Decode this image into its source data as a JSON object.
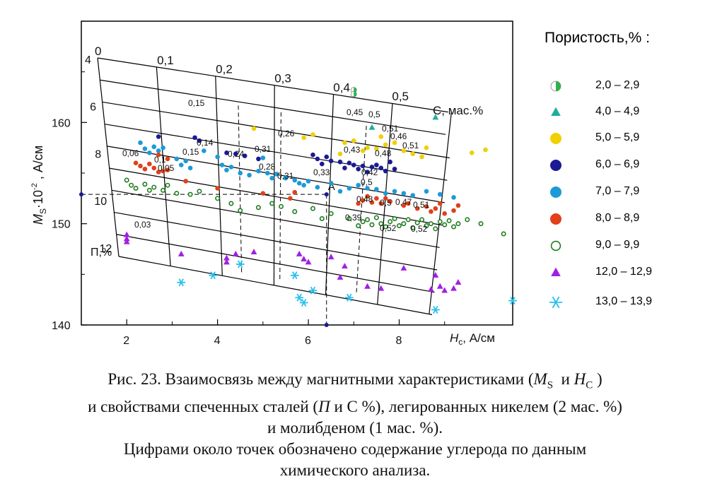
{
  "chart_data": {
    "type": "scatter",
    "title": "",
    "xlabel_main": "H",
    "xlabel_sub": "c",
    "xlabel_unit": ", А/см",
    "ylabel_main": "M",
    "ylabel_sub": "S",
    "ylabel_exp": "·10",
    "ylabel_pow": "-2",
    "ylabel_unit": " , А/см",
    "x_ticks": [
      "2",
      "4",
      "6",
      "8"
    ],
    "y_ticks": [
      "140",
      "150",
      "160"
    ],
    "xlim": [
      1,
      10.5
    ],
    "ylim": [
      140,
      170
    ],
    "nomogram": {
      "carbon_label": "С, мас.%",
      "porosity_label": "П,%",
      "carbon_values": [
        "0",
        "0,1",
        "0,2",
        "0,3",
        "0,4",
        "0,5"
      ],
      "porosity_values": [
        "4",
        "6",
        "8",
        "10",
        "12"
      ],
      "point_A_label": "A",
      "point_A": {
        "x": 6.4,
        "y": 152.9
      }
    },
    "carbon_annotations": [
      "0,15",
      "0,14",
      "0,15",
      "0,24",
      "0,26",
      "0,31",
      "0,28",
      "0,31",
      "0,33",
      "0,06",
      "0,1",
      "0,05",
      "0,45",
      "0,5",
      "0,51",
      "0,46",
      "0,51",
      "0,43",
      "0,48",
      "0,42",
      "0,5",
      "0,48",
      "0,5",
      "0,47",
      "0,51",
      "0,39",
      "0,52",
      "0,52",
      "0,03"
    ],
    "legend": {
      "title": "Пористость,%",
      "title_suffix": " :",
      "placement": "right"
    },
    "series": [
      {
        "name": "2,0 – 2,9",
        "marker": "half-circle",
        "color": "#2db34a",
        "points": [
          [
            7.0,
            163.2
          ],
          [
            7.0,
            162.8
          ]
        ]
      },
      {
        "name": "4,0 – 4,9",
        "marker": "triangle",
        "color": "#1fae9c",
        "points": [
          [
            8.8,
            160.5
          ],
          [
            7.4,
            159.5
          ]
        ]
      },
      {
        "name": "5,0 – 5,9",
        "marker": "circle",
        "color": "#f0d000",
        "points": [
          [
            4.8,
            159.4
          ],
          [
            5.9,
            158.5
          ],
          [
            6.1,
            158.8
          ],
          [
            6.8,
            158.0
          ],
          [
            7.0,
            158.2
          ],
          [
            7.2,
            157.2
          ],
          [
            7.3,
            157.5
          ],
          [
            7.5,
            157.4
          ],
          [
            7.7,
            157.8
          ],
          [
            7.9,
            158.0
          ],
          [
            8.1,
            157.2
          ],
          [
            8.3,
            156.9
          ],
          [
            8.5,
            156.6
          ],
          [
            9.6,
            157.0
          ],
          [
            9.9,
            157.3
          ],
          [
            8.6,
            157.5
          ],
          [
            7.6,
            158.6
          ],
          [
            6.7,
            156.9
          ]
        ]
      },
      {
        "name": "6,0 – 6,9",
        "marker": "circle",
        "color": "#1a1a96",
        "points": [
          [
            2.7,
            158.6
          ],
          [
            3.5,
            158.5
          ],
          [
            3.6,
            158.2
          ],
          [
            4.2,
            157.0
          ],
          [
            4.4,
            156.9
          ],
          [
            4.6,
            156.7
          ],
          [
            4.9,
            156.4
          ],
          [
            6.2,
            156.4
          ],
          [
            6.4,
            156.6
          ],
          [
            6.5,
            156.2
          ],
          [
            6.7,
            156.1
          ],
          [
            6.9,
            156.0
          ],
          [
            7.0,
            155.8
          ],
          [
            7.2,
            155.7
          ],
          [
            7.4,
            155.6
          ],
          [
            7.5,
            155.8
          ],
          [
            7.6,
            155.5
          ],
          [
            7.7,
            155.2
          ],
          [
            7.9,
            155.4
          ],
          [
            6.3,
            155.9
          ],
          [
            6.8,
            155.5
          ],
          [
            7.1,
            155.4
          ],
          [
            7.3,
            155.1
          ],
          [
            6.1,
            156.8
          ],
          [
            7.8,
            156.1
          ]
        ]
      },
      {
        "name": "7,0 – 7,9",
        "marker": "circle",
        "color": "#1c9ad8",
        "points": [
          [
            2.3,
            158.0
          ],
          [
            2.4,
            157.4
          ],
          [
            2.5,
            157.0
          ],
          [
            2.6,
            157.6
          ],
          [
            2.7,
            157.2
          ],
          [
            2.8,
            157.5
          ],
          [
            3.1,
            156.4
          ],
          [
            3.2,
            155.8
          ],
          [
            3.3,
            156.2
          ],
          [
            3.4,
            155.5
          ],
          [
            3.7,
            157.2
          ],
          [
            4.0,
            156.6
          ],
          [
            4.1,
            155.8
          ],
          [
            4.2,
            155.3
          ],
          [
            4.3,
            155.6
          ],
          [
            4.5,
            155.0
          ],
          [
            4.7,
            154.8
          ],
          [
            4.9,
            155.2
          ],
          [
            5.1,
            155.0
          ],
          [
            5.2,
            154.5
          ],
          [
            5.3,
            154.9
          ],
          [
            5.5,
            154.5
          ],
          [
            5.7,
            154.3
          ],
          [
            5.8,
            154.0
          ],
          [
            5.9,
            153.8
          ],
          [
            6.0,
            154.2
          ],
          [
            6.2,
            153.6
          ],
          [
            6.5,
            154.0
          ],
          [
            6.7,
            153.2
          ],
          [
            6.9,
            153.5
          ],
          [
            7.1,
            153.8
          ],
          [
            7.3,
            153.5
          ],
          [
            7.5,
            153.4
          ],
          [
            7.7,
            153.0
          ],
          [
            7.9,
            153.2
          ],
          [
            8.1,
            153.0
          ],
          [
            8.3,
            152.8
          ],
          [
            8.6,
            153.2
          ],
          [
            8.9,
            152.9
          ],
          [
            9.2,
            152.6
          ],
          [
            5.0,
            156.5
          ]
        ]
      },
      {
        "name": "8,0 – 8,9",
        "marker": "circle",
        "color": "#e0401a",
        "points": [
          [
            2.7,
            156.8
          ],
          [
            2.9,
            156.4
          ],
          [
            2.2,
            156.0
          ],
          [
            2.3,
            155.7
          ],
          [
            2.4,
            155.4
          ],
          [
            2.5,
            155.9
          ],
          [
            2.6,
            155.5
          ],
          [
            2.7,
            155.1
          ],
          [
            2.8,
            155.2
          ],
          [
            2.9,
            155.3
          ],
          [
            3.3,
            154.2
          ],
          [
            4.0,
            153.5
          ],
          [
            5.0,
            153.0
          ],
          [
            5.6,
            152.5
          ],
          [
            5.7,
            153.1
          ],
          [
            7.2,
            152.3
          ],
          [
            7.3,
            152.7
          ],
          [
            7.4,
            152.1
          ],
          [
            7.5,
            152.5
          ],
          [
            7.6,
            152.0
          ],
          [
            7.8,
            152.2
          ],
          [
            8.1,
            151.8
          ],
          [
            8.2,
            152.0
          ],
          [
            8.4,
            151.5
          ],
          [
            8.6,
            151.7
          ],
          [
            8.7,
            151.2
          ],
          [
            8.8,
            151.5
          ],
          [
            9.0,
            151.0
          ],
          [
            9.2,
            151.3
          ],
          [
            9.3,
            151.8
          ],
          [
            8.9,
            152.0
          ],
          [
            7.7,
            152.5
          ],
          [
            7.1,
            152.0
          ]
        ]
      },
      {
        "name": "9,0 – 9,9",
        "marker": "ring",
        "color": "#1e7d1e",
        "points": [
          [
            2.0,
            154.3
          ],
          [
            2.1,
            153.8
          ],
          [
            2.2,
            153.5
          ],
          [
            2.4,
            153.9
          ],
          [
            2.5,
            153.3
          ],
          [
            2.6,
            153.6
          ],
          [
            2.8,
            153.3
          ],
          [
            2.9,
            153.8
          ],
          [
            3.1,
            153.0
          ],
          [
            3.4,
            152.9
          ],
          [
            3.6,
            153.2
          ],
          [
            4.0,
            152.5
          ],
          [
            4.3,
            152.0
          ],
          [
            4.5,
            151.3
          ],
          [
            4.9,
            151.6
          ],
          [
            5.2,
            152.0
          ],
          [
            5.4,
            151.7
          ],
          [
            5.7,
            151.2
          ],
          [
            6.1,
            151.5
          ],
          [
            6.3,
            150.5
          ],
          [
            6.5,
            151.0
          ],
          [
            6.9,
            150.5
          ],
          [
            7.1,
            149.8
          ],
          [
            7.2,
            150.2
          ],
          [
            7.3,
            150.4
          ],
          [
            7.4,
            149.9
          ],
          [
            7.5,
            150.6
          ],
          [
            7.6,
            150.0
          ],
          [
            7.7,
            149.7
          ],
          [
            7.8,
            150.2
          ],
          [
            7.9,
            150.5
          ],
          [
            8.0,
            149.8
          ],
          [
            8.1,
            150.0
          ],
          [
            8.2,
            150.4
          ],
          [
            8.3,
            149.6
          ],
          [
            8.4,
            150.1
          ],
          [
            8.5,
            150.4
          ],
          [
            8.6,
            149.8
          ],
          [
            8.7,
            150.0
          ],
          [
            8.8,
            149.5
          ],
          [
            8.9,
            150.2
          ],
          [
            9.0,
            149.9
          ],
          [
            9.1,
            150.3
          ],
          [
            9.2,
            149.7
          ],
          [
            9.3,
            150.0
          ],
          [
            9.5,
            150.4
          ],
          [
            9.8,
            150.0
          ],
          [
            10.3,
            149.0
          ]
        ]
      },
      {
        "name": "12,0 – 12,9",
        "marker": "triangle",
        "color": "#a020e0",
        "points": [
          [
            2.0,
            148.9
          ],
          [
            2.0,
            148.5
          ],
          [
            2.0,
            148.2
          ],
          [
            3.2,
            147.0
          ],
          [
            4.2,
            146.2
          ],
          [
            4.2,
            146.6
          ],
          [
            4.4,
            147.0
          ],
          [
            4.8,
            147.2
          ],
          [
            5.8,
            147.0
          ],
          [
            5.9,
            146.5
          ],
          [
            6.0,
            146.2
          ],
          [
            6.5,
            146.7
          ],
          [
            6.7,
            144.7
          ],
          [
            6.8,
            145.8
          ],
          [
            7.3,
            143.8
          ],
          [
            7.6,
            143.6
          ],
          [
            8.1,
            145.6
          ],
          [
            8.7,
            143.5
          ],
          [
            8.8,
            144.9
          ],
          [
            8.9,
            143.8
          ],
          [
            9.0,
            143.4
          ],
          [
            9.2,
            143.6
          ],
          [
            9.3,
            144.2
          ]
        ]
      },
      {
        "name": "13,0 – 13,9",
        "marker": "asterisk",
        "color": "#28c0ec",
        "points": [
          [
            3.2,
            144.2
          ],
          [
            3.9,
            144.9
          ],
          [
            4.5,
            146.0
          ],
          [
            5.7,
            144.9
          ],
          [
            5.8,
            142.7
          ],
          [
            5.9,
            142.2
          ],
          [
            6.1,
            143.4
          ],
          [
            6.9,
            142.7
          ],
          [
            8.8,
            141.5
          ],
          [
            10.5,
            142.4
          ]
        ]
      }
    ]
  },
  "caption": {
    "line1_text": "Рис. 23. Взаимосвязь между магнитными характеристиками (",
    "line1_ms": "M",
    "line1_ms_sub": "S",
    "line1_and": "  и ",
    "line1_hc": "H",
    "line1_hc_sub": "C",
    "line1_end": " )",
    "line2_a": "и свойствами спеченных сталей (",
    "line2_p": "П",
    "line2_b": " и С %), легированных никелем (2 мас. %)",
    "line3": "и молибденом (1 мас. %).",
    "line4": "Цифрами около точек обозначено содержание углерода по данным",
    "line5": "химического анализа."
  }
}
